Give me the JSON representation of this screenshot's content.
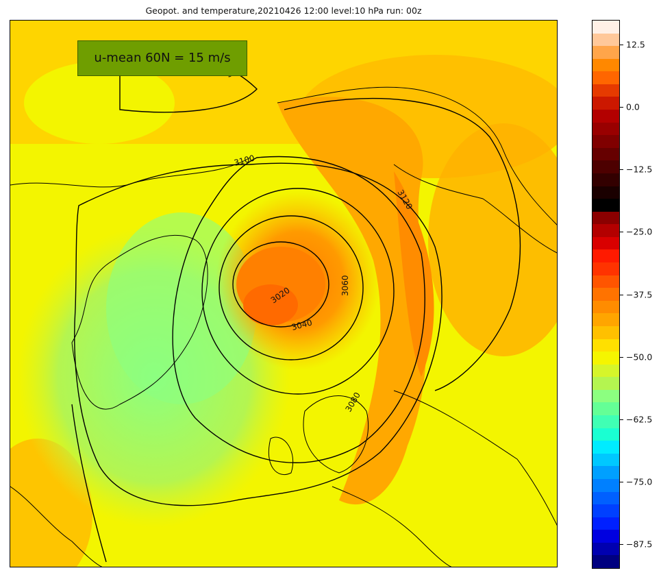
{
  "title": "Geopot. and temperature,20210426 12:00 level:10 hPa run: 00z",
  "annotation": "u-mean 60N = 15 m/s",
  "contour_labels": [
    "3120",
    "3100",
    "3120",
    "3020",
    "3040",
    "3060",
    "3080"
  ],
  "colorbar": {
    "ticks": [
      "12.5",
      "0.0",
      "−12.5",
      "−25.0",
      "−37.5",
      "−50.0",
      "−62.5",
      "−75.0",
      "−87.5"
    ],
    "tick_values": [
      12.5,
      0.0,
      -12.5,
      -25.0,
      -37.5,
      -50.0,
      -62.5,
      -75.0,
      -87.5
    ],
    "range": [
      -92.5,
      17.5
    ],
    "colors": [
      "#fff0e6",
      "#ffc89a",
      "#ffa54a",
      "#ff8800",
      "#ff6600",
      "#e63a00",
      "#cc1800",
      "#b30000",
      "#990000",
      "#800000",
      "#660000",
      "#4d0000",
      "#330000",
      "#1a0000",
      "#000000",
      "#8b0000",
      "#b30000",
      "#d90000",
      "#ff1a00",
      "#ff3300",
      "#ff5500",
      "#ff7300",
      "#ff8c00",
      "#ffa500",
      "#ffc000",
      "#ffe000",
      "#f5f500",
      "#d6f52a",
      "#b4f550",
      "#8cff80",
      "#64ff96",
      "#40ffb4",
      "#1affd2",
      "#00ecff",
      "#00c8ff",
      "#00a0ff",
      "#0080ff",
      "#0060ff",
      "#0040ff",
      "#0020ff",
      "#0000e0",
      "#0000b0",
      "#000080"
    ]
  }
}
